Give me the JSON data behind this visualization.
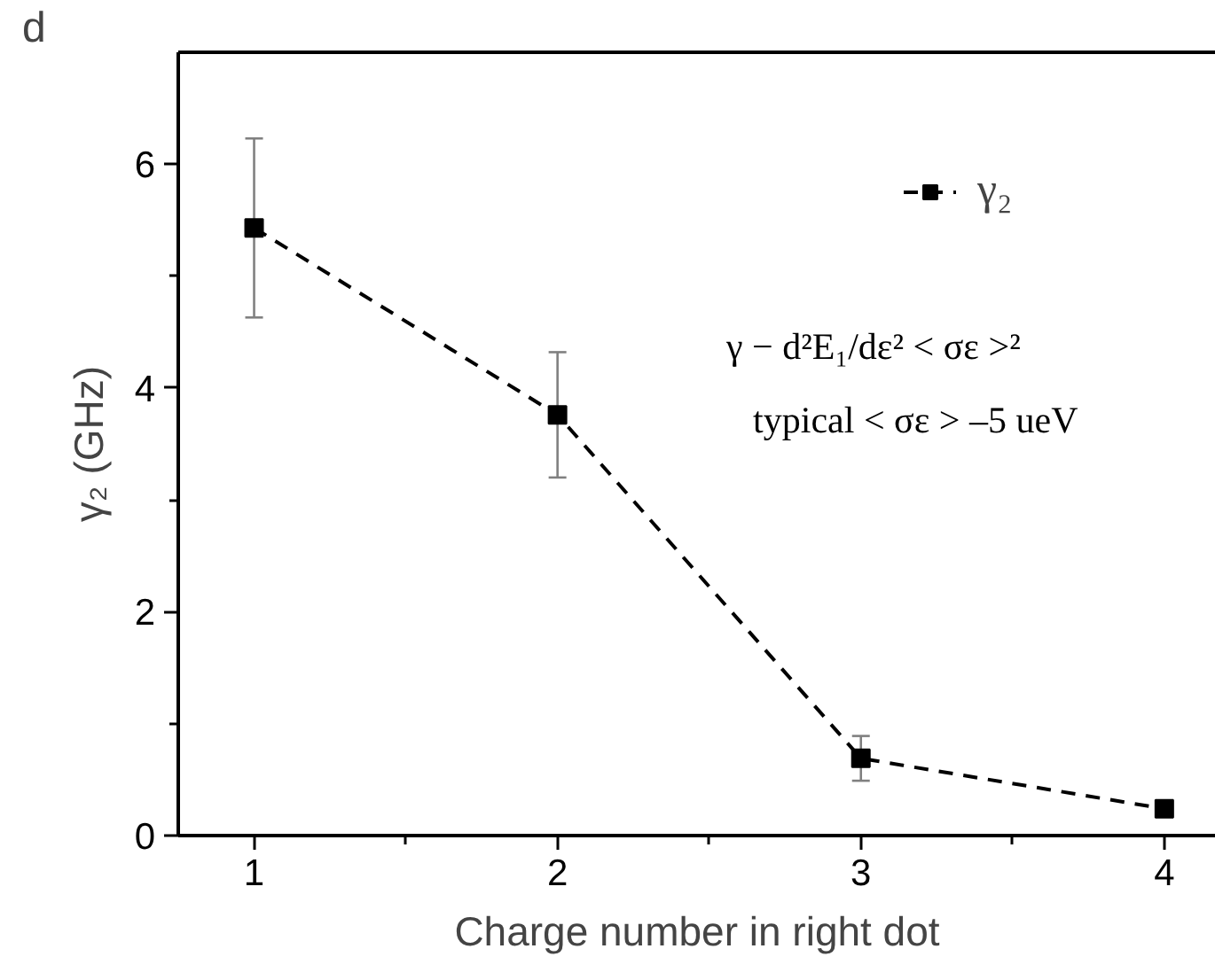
{
  "chart_data": {
    "type": "line",
    "title": "d",
    "xlabel": "Charge number in right dot",
    "ylabel": "γ₂ (GHz)",
    "x": [
      1,
      2,
      3,
      4
    ],
    "series": [
      {
        "name": "γ₂",
        "color": "#000000",
        "values": [
          5.43,
          3.76,
          0.69,
          0.24
        ],
        "errors": [
          0.8,
          0.56,
          0.2,
          null
        ]
      }
    ],
    "xlim": [
      0.75,
      4.17
    ],
    "ylim": [
      0,
      7
    ],
    "xticks": [
      1,
      {
        "value": 1.5,
        "label": null
      },
      2,
      {
        "value": 2.5,
        "label": null
      },
      3,
      {
        "value": 3.5,
        "label": null
      },
      4
    ],
    "yticks": [
      0,
      {
        "value": 1,
        "label": null
      },
      2,
      {
        "value": 3,
        "label": null
      },
      4,
      {
        "value": 5,
        "label": null
      },
      6
    ],
    "marker": "square",
    "line_style": "dashed",
    "legend": "top right",
    "grid": false,
    "annotations": [
      "γ − d²E₁/dε² < σε >²",
      "typical < σε >  –5 ueV"
    ]
  }
}
